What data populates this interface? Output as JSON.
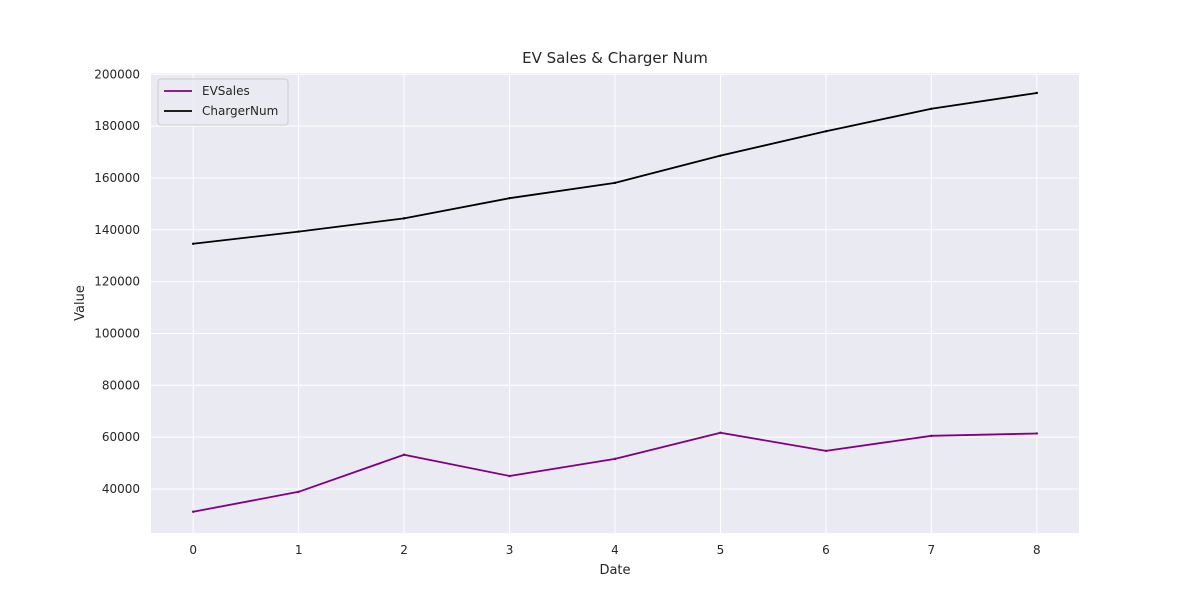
{
  "chart_data": {
    "type": "line",
    "title": "EV Sales & Charger Num",
    "xlabel": "Date",
    "ylabel": "Value",
    "x": [
      0,
      1,
      2,
      3,
      4,
      5,
      6,
      7,
      8
    ],
    "xticks": [
      "0",
      "1",
      "2",
      "3",
      "4",
      "5",
      "6",
      "7",
      "8"
    ],
    "yticks": [
      "40000",
      "60000",
      "80000",
      "100000",
      "120000",
      "140000",
      "160000",
      "180000",
      "200000"
    ],
    "xlim": [
      -0.4,
      8.4
    ],
    "ylim": [
      23000,
      200500
    ],
    "grid": true,
    "legend_position": "top-left",
    "background_color": "#eaeaf2",
    "grid_color": "#ffffff",
    "series": [
      {
        "name": "EVSales",
        "color": "#800080",
        "values": [
          31200,
          38900,
          53200,
          45000,
          51600,
          61700,
          54700,
          60500,
          61400
        ]
      },
      {
        "name": "ChargerNum",
        "color": "#000000",
        "values": [
          134600,
          139300,
          144400,
          152200,
          158100,
          168600,
          178000,
          186700,
          192800
        ]
      }
    ]
  }
}
